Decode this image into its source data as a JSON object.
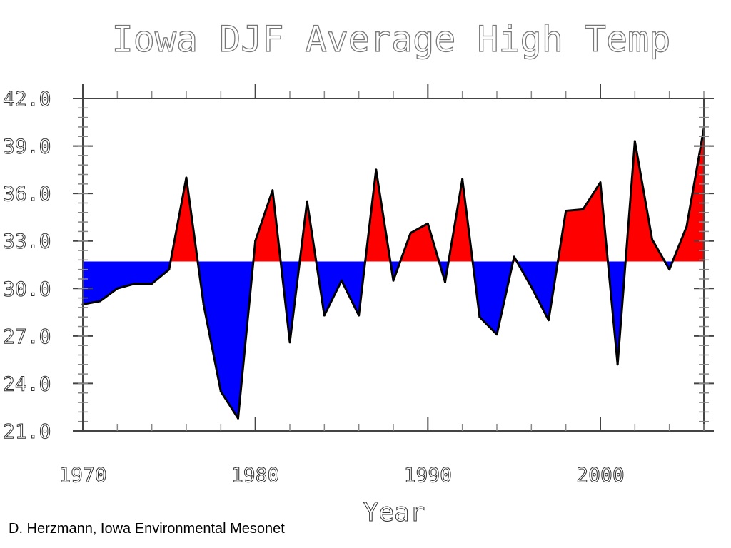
{
  "chart_data": {
    "type": "area",
    "title": "Iowa DJF Average High Temp",
    "xlabel": "Year",
    "ylabel": "",
    "baseline": 31.7,
    "above_color": "#ff0000",
    "below_color": "#0000ff",
    "line_color": "#000000",
    "xlim": [
      1970,
      2006
    ],
    "ylim": [
      21.0,
      42.0
    ],
    "xticks": [
      "1970",
      "1980",
      "1990",
      "2000"
    ],
    "yticks": [
      "21.0",
      "24.0",
      "27.0",
      "30.0",
      "33.0",
      "36.0",
      "39.0",
      "42.0"
    ],
    "x": [
      1970,
      1971,
      1972,
      1973,
      1974,
      1975,
      1976,
      1977,
      1978,
      1979,
      1980,
      1981,
      1982,
      1983,
      1984,
      1985,
      1986,
      1987,
      1988,
      1989,
      1990,
      1991,
      1992,
      1993,
      1994,
      1995,
      1996,
      1997,
      1998,
      1999,
      2000,
      2001,
      2002,
      2003,
      2004,
      2005,
      2006
    ],
    "y": [
      29.0,
      29.2,
      30.0,
      30.3,
      30.3,
      31.2,
      37.0,
      29.0,
      23.5,
      21.8,
      33.0,
      36.2,
      26.6,
      35.5,
      28.3,
      30.5,
      28.3,
      37.5,
      30.5,
      33.5,
      34.1,
      30.4,
      36.9,
      28.2,
      27.1,
      32.0,
      30.1,
      28.0,
      34.9,
      35.0,
      36.7,
      25.2,
      39.3,
      33.1,
      31.2,
      33.9,
      40.1
    ]
  },
  "credit": "D. Herzmann, Iowa Environmental Mesonet"
}
